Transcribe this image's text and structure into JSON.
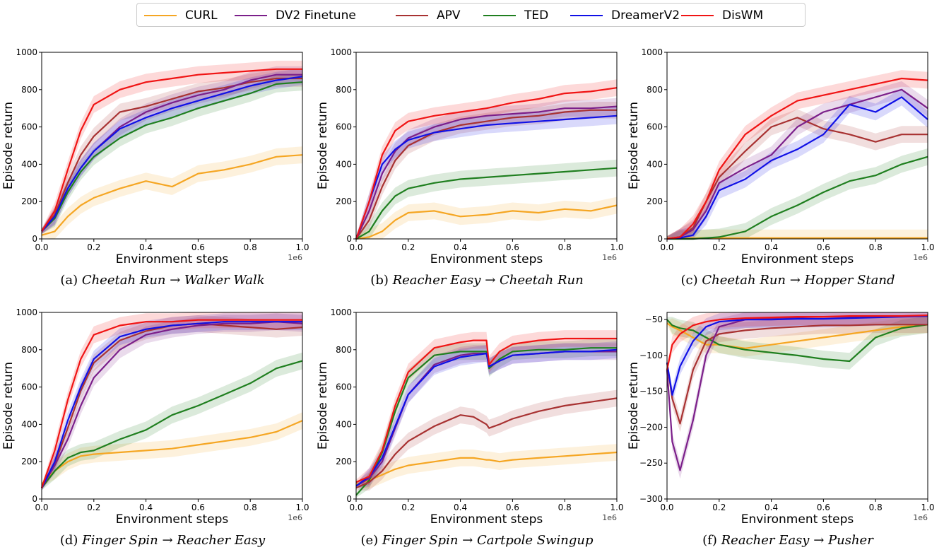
{
  "legend": {
    "entries": [
      {
        "name": "CURL",
        "color": "#f5a623"
      },
      {
        "name": "DV2 Finetune",
        "color": "#7b1f8a"
      },
      {
        "name": "APV",
        "color": "#a83232"
      },
      {
        "name": "TED",
        "color": "#1f7f1f"
      },
      {
        "name": "DreamerV2",
        "color": "#1010e6"
      },
      {
        "name": "DisWM",
        "color": "#f01414"
      }
    ]
  },
  "chart_data": [
    {
      "type": "line",
      "caption": {
        "prefix": "(a)",
        "source": "Cheetah Run",
        "arrow": "→",
        "target": "Walker Walk"
      },
      "xlabel": "Environment steps",
      "ylabel": "Episode return",
      "x_offset": "1e6",
      "xlim": [
        0,
        1.0
      ],
      "ylim": [
        0,
        1000
      ],
      "xticks": [
        "0.0",
        "0.2",
        "0.4",
        "0.6",
        "0.8",
        "1.0"
      ],
      "yticks": [
        "0",
        "200",
        "400",
        "600",
        "800",
        "1000"
      ],
      "x": [
        0.0,
        0.05,
        0.1,
        0.15,
        0.2,
        0.3,
        0.4,
        0.5,
        0.6,
        0.7,
        0.8,
        0.9,
        1.0
      ],
      "series": [
        {
          "name": "CURL",
          "values": [
            20,
            40,
            120,
            180,
            220,
            270,
            310,
            280,
            350,
            370,
            400,
            440,
            450
          ]
        },
        {
          "name": "DV2 Finetune",
          "values": [
            40,
            120,
            270,
            380,
            470,
            600,
            680,
            730,
            770,
            800,
            850,
            880,
            880
          ]
        },
        {
          "name": "APV",
          "values": [
            40,
            130,
            300,
            450,
            550,
            680,
            710,
            750,
            790,
            810,
            840,
            860,
            860
          ]
        },
        {
          "name": "TED",
          "values": [
            40,
            110,
            250,
            360,
            440,
            540,
            610,
            650,
            700,
            740,
            780,
            830,
            840
          ]
        },
        {
          "name": "DreamerV2",
          "values": [
            40,
            120,
            270,
            380,
            470,
            590,
            650,
            700,
            740,
            780,
            820,
            850,
            870
          ]
        },
        {
          "name": "DisWM",
          "values": [
            40,
            150,
            370,
            580,
            720,
            800,
            840,
            860,
            880,
            890,
            900,
            910,
            910
          ]
        }
      ]
    },
    {
      "type": "line",
      "caption": {
        "prefix": "(b)",
        "source": "Reacher Easy",
        "arrow": "→",
        "target": "Cheetah Run"
      },
      "xlabel": "Environment steps",
      "ylabel": "Episode return",
      "x_offset": "1e6",
      "xlim": [
        0,
        1.0
      ],
      "ylim": [
        0,
        1000
      ],
      "xticks": [
        "0.0",
        "0.2",
        "0.4",
        "0.6",
        "0.8",
        "1.0"
      ],
      "yticks": [
        "0",
        "200",
        "400",
        "600",
        "800",
        "1000"
      ],
      "x": [
        0.0,
        0.05,
        0.1,
        0.15,
        0.2,
        0.3,
        0.4,
        0.5,
        0.6,
        0.7,
        0.8,
        0.9,
        1.0
      ],
      "series": [
        {
          "name": "CURL",
          "values": [
            0,
            10,
            40,
            100,
            140,
            150,
            120,
            130,
            150,
            140,
            160,
            150,
            180
          ]
        },
        {
          "name": "DV2 Finetune",
          "values": [
            0,
            150,
            350,
            470,
            540,
            600,
            640,
            660,
            670,
            680,
            700,
            700,
            710
          ]
        },
        {
          "name": "APV",
          "values": [
            0,
            100,
            280,
            420,
            500,
            570,
            610,
            630,
            650,
            660,
            680,
            690,
            690
          ]
        },
        {
          "name": "TED",
          "values": [
            0,
            40,
            150,
            230,
            270,
            300,
            320,
            330,
            340,
            350,
            360,
            370,
            380
          ]
        },
        {
          "name": "DreamerV2",
          "values": [
            0,
            200,
            400,
            480,
            530,
            570,
            590,
            610,
            620,
            630,
            640,
            650,
            660
          ]
        },
        {
          "name": "DisWM",
          "values": [
            0,
            200,
            450,
            580,
            630,
            660,
            680,
            700,
            730,
            750,
            780,
            790,
            810
          ]
        }
      ]
    },
    {
      "type": "line",
      "caption": {
        "prefix": "(c)",
        "source": "Cheetah Run",
        "arrow": "→",
        "target": "Hopper Stand"
      },
      "xlabel": "Environment steps",
      "ylabel": "Episode return",
      "x_offset": "1e6",
      "xlim": [
        0,
        1.0
      ],
      "ylim": [
        0,
        1000
      ],
      "xticks": [
        "0.0",
        "0.2",
        "0.4",
        "0.6",
        "0.8",
        "1.0"
      ],
      "yticks": [
        "0",
        "200",
        "400",
        "600",
        "800",
        "1000"
      ],
      "x": [
        0.0,
        0.05,
        0.1,
        0.15,
        0.2,
        0.3,
        0.4,
        0.5,
        0.6,
        0.7,
        0.8,
        0.9,
        1.0
      ],
      "series": [
        {
          "name": "CURL",
          "values": [
            5,
            5,
            5,
            5,
            5,
            5,
            5,
            5,
            5,
            5,
            5,
            5,
            5
          ]
        },
        {
          "name": "DV2 Finetune",
          "values": [
            0,
            10,
            50,
            150,
            300,
            380,
            450,
            600,
            680,
            720,
            760,
            800,
            700
          ]
        },
        {
          "name": "APV",
          "values": [
            0,
            10,
            60,
            200,
            330,
            470,
            600,
            650,
            590,
            560,
            520,
            560,
            560
          ]
        },
        {
          "name": "TED",
          "values": [
            0,
            0,
            0,
            5,
            10,
            40,
            120,
            180,
            250,
            310,
            340,
            400,
            440
          ]
        },
        {
          "name": "DreamerV2",
          "values": [
            0,
            5,
            20,
            120,
            260,
            320,
            420,
            480,
            560,
            720,
            680,
            760,
            640
          ]
        },
        {
          "name": "DisWM",
          "values": [
            0,
            10,
            80,
            200,
            370,
            560,
            660,
            740,
            770,
            800,
            830,
            860,
            850
          ]
        }
      ]
    },
    {
      "type": "line",
      "caption": {
        "prefix": "(d)",
        "source": "Finger Spin",
        "arrow": "→",
        "target": "Reacher Easy"
      },
      "xlabel": "Environment steps",
      "ylabel": "Episode return",
      "x_offset": "1e6",
      "xlim": [
        0,
        1.0
      ],
      "ylim": [
        0,
        1000
      ],
      "xticks": [
        "0.0",
        "0.2",
        "0.4",
        "0.6",
        "0.8",
        "1.0"
      ],
      "yticks": [
        "0",
        "200",
        "400",
        "600",
        "800",
        "1000"
      ],
      "x": [
        0.0,
        0.05,
        0.1,
        0.15,
        0.2,
        0.3,
        0.4,
        0.5,
        0.6,
        0.7,
        0.8,
        0.9,
        1.0
      ],
      "series": [
        {
          "name": "CURL",
          "values": [
            80,
            150,
            200,
            230,
            240,
            250,
            260,
            270,
            290,
            310,
            330,
            360,
            420
          ]
        },
        {
          "name": "DV2 Finetune",
          "values": [
            60,
            180,
            320,
            500,
            650,
            800,
            880,
            910,
            930,
            940,
            940,
            950,
            940
          ]
        },
        {
          "name": "APV",
          "values": [
            60,
            190,
            380,
            580,
            730,
            850,
            900,
            930,
            940,
            930,
            920,
            910,
            920
          ]
        },
        {
          "name": "TED",
          "values": [
            60,
            150,
            220,
            250,
            260,
            320,
            370,
            450,
            500,
            560,
            620,
            700,
            740
          ]
        },
        {
          "name": "DreamerV2",
          "values": [
            60,
            200,
            420,
            600,
            750,
            870,
            910,
            930,
            940,
            950,
            950,
            950,
            950
          ]
        },
        {
          "name": "DisWM",
          "values": [
            60,
            260,
            530,
            750,
            880,
            930,
            950,
            950,
            960,
            960,
            960,
            960,
            960
          ]
        }
      ]
    },
    {
      "type": "line",
      "caption": {
        "prefix": "(e)",
        "source": "Finger Spin",
        "arrow": "→",
        "target": "Cartpole Swingup"
      },
      "xlabel": "Environment steps",
      "ylabel": "Episode return",
      "x_offset": "1e6",
      "xlim": [
        0,
        1.0
      ],
      "ylim": [
        0,
        1000
      ],
      "xticks": [
        "0.0",
        "0.2",
        "0.4",
        "0.6",
        "0.8",
        "1.0"
      ],
      "yticks": [
        "0",
        "200",
        "400",
        "600",
        "800",
        "1000"
      ],
      "x": [
        0.0,
        0.05,
        0.1,
        0.15,
        0.2,
        0.3,
        0.4,
        0.45,
        0.5,
        0.51,
        0.55,
        0.6,
        0.7,
        0.8,
        0.9,
        1.0
      ],
      "series": [
        {
          "name": "CURL",
          "values": [
            80,
            100,
            130,
            160,
            180,
            200,
            220,
            220,
            210,
            210,
            200,
            210,
            220,
            230,
            240,
            250
          ]
        },
        {
          "name": "DV2 Finetune",
          "values": [
            70,
            110,
            200,
            380,
            560,
            720,
            770,
            780,
            780,
            710,
            740,
            770,
            780,
            790,
            790,
            790
          ]
        },
        {
          "name": "APV",
          "values": [
            60,
            90,
            150,
            240,
            310,
            390,
            450,
            440,
            400,
            380,
            400,
            430,
            470,
            500,
            520,
            540
          ]
        },
        {
          "name": "TED",
          "values": [
            20,
            100,
            250,
            470,
            650,
            770,
            790,
            790,
            790,
            700,
            750,
            790,
            800,
            800,
            810,
            810
          ]
        },
        {
          "name": "DreamerV2",
          "values": [
            70,
            120,
            220,
            390,
            560,
            710,
            760,
            770,
            780,
            710,
            740,
            770,
            780,
            790,
            790,
            800
          ]
        },
        {
          "name": "DisWM",
          "values": [
            90,
            120,
            260,
            500,
            680,
            810,
            840,
            850,
            850,
            720,
            790,
            830,
            850,
            860,
            860,
            860
          ]
        }
      ]
    },
    {
      "type": "line",
      "caption": {
        "prefix": "(f)",
        "source": "Reacher Easy",
        "arrow": "→",
        "target": "Pusher"
      },
      "xlabel": "Environment steps",
      "ylabel": "Episode return",
      "x_offset": "1e6",
      "xlim": [
        0,
        1.0
      ],
      "ylim": [
        -300,
        -40
      ],
      "xticks": [
        "0.0",
        "0.2",
        "0.4",
        "0.6",
        "0.8",
        "1.0"
      ],
      "yticks": [
        "−300",
        "−250",
        "−200",
        "−150",
        "−100",
        "−50"
      ],
      "ytick_values": [
        -300,
        -250,
        -200,
        -150,
        -100,
        -50
      ],
      "x": [
        0.0,
        0.02,
        0.05,
        0.1,
        0.15,
        0.2,
        0.3,
        0.4,
        0.5,
        0.6,
        0.7,
        0.8,
        0.9,
        1.0
      ],
      "series": [
        {
          "name": "CURL",
          "values": [
            -55,
            -60,
            -65,
            -75,
            -85,
            -85,
            -90,
            -85,
            -80,
            -75,
            -70,
            -65,
            -60,
            -57
          ]
        },
        {
          "name": "DV2 Finetune",
          "values": [
            -120,
            -220,
            -260,
            -190,
            -100,
            -60,
            -50,
            -48,
            -47,
            -46,
            -46,
            -45,
            -45,
            -45
          ]
        },
        {
          "name": "APV",
          "values": [
            -110,
            -160,
            -195,
            -120,
            -80,
            -70,
            -65,
            -62,
            -60,
            -58,
            -58,
            -57,
            -57,
            -57
          ]
        },
        {
          "name": "TED",
          "values": [
            -50,
            -58,
            -62,
            -65,
            -75,
            -85,
            -92,
            -96,
            -100,
            -105,
            -108,
            -75,
            -62,
            -57
          ]
        },
        {
          "name": "DreamerV2",
          "values": [
            -110,
            -155,
            -115,
            -80,
            -60,
            -53,
            -50,
            -50,
            -49,
            -49,
            -48,
            -47,
            -46,
            -45
          ]
        },
        {
          "name": "DisWM",
          "values": [
            -120,
            -85,
            -70,
            -58,
            -53,
            -50,
            -48,
            -47,
            -46,
            -46,
            -45,
            -45,
            -45,
            -44
          ]
        }
      ]
    }
  ]
}
